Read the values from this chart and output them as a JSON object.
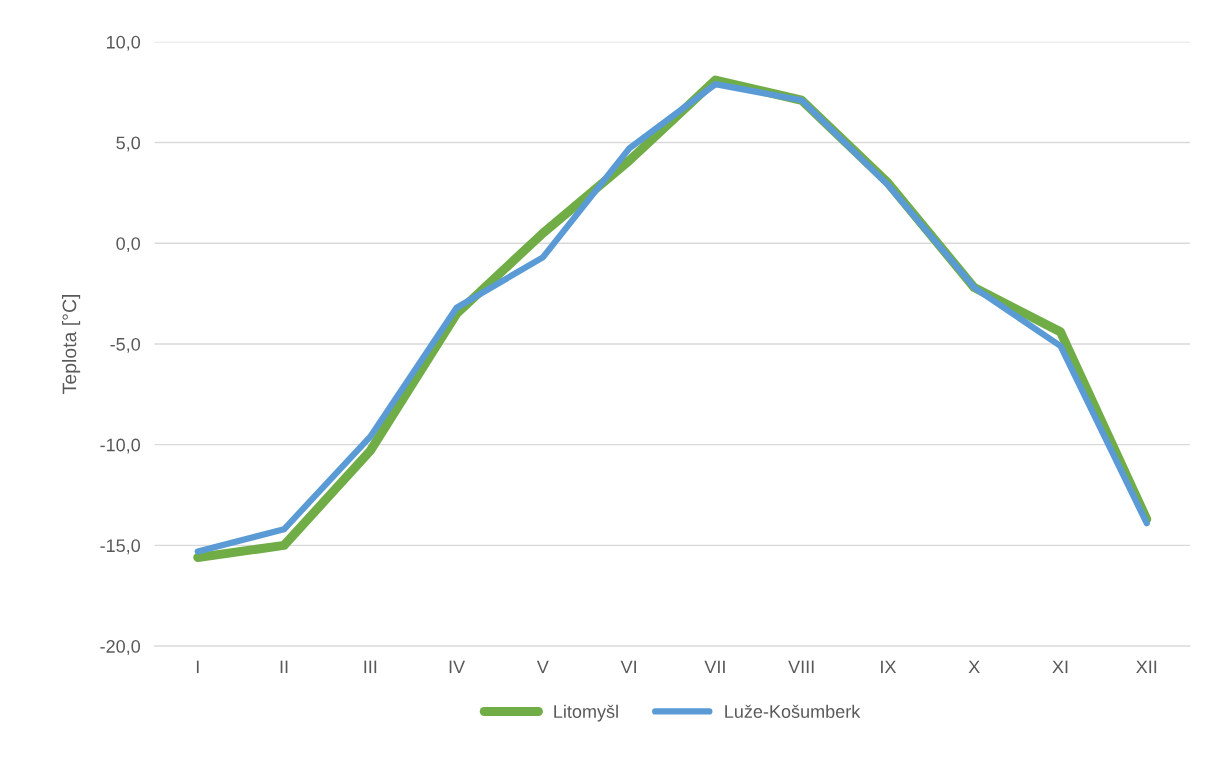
{
  "chart_data": {
    "type": "line",
    "ylabel": "Teplota [°C]",
    "categories": [
      "I",
      "II",
      "III",
      "IV",
      "V",
      "VI",
      "VII",
      "VIII",
      "IX",
      "X",
      "XI",
      "XII"
    ],
    "series": [
      {
        "name": "Litomyšl",
        "color": "#70ad47",
        "values": [
          -15.6,
          -15.0,
          -10.3,
          -3.5,
          0.5,
          4.1,
          8.1,
          7.1,
          3.0,
          -2.2,
          -4.4,
          -13.7
        ]
      },
      {
        "name": "Luže-Košumberk",
        "color": "#5b9bd5",
        "values": [
          -15.3,
          -14.2,
          -9.6,
          -3.2,
          -0.7,
          4.7,
          7.9,
          7.1,
          2.9,
          -2.2,
          -5.1,
          -13.9
        ]
      }
    ],
    "ylim": [
      -20,
      10
    ],
    "yticks": [
      {
        "value": -20,
        "label": "-20,0"
      },
      {
        "value": -15,
        "label": "-15,0"
      },
      {
        "value": -10,
        "label": "-10,0"
      },
      {
        "value": -5,
        "label": "-5,0"
      },
      {
        "value": 0,
        "label": "0,0"
      },
      {
        "value": 5,
        "label": "5,0"
      },
      {
        "value": 10,
        "label": "10,0"
      }
    ],
    "grid": "y",
    "legend": "bottom",
    "marker": "none",
    "line_style": "solid"
  }
}
